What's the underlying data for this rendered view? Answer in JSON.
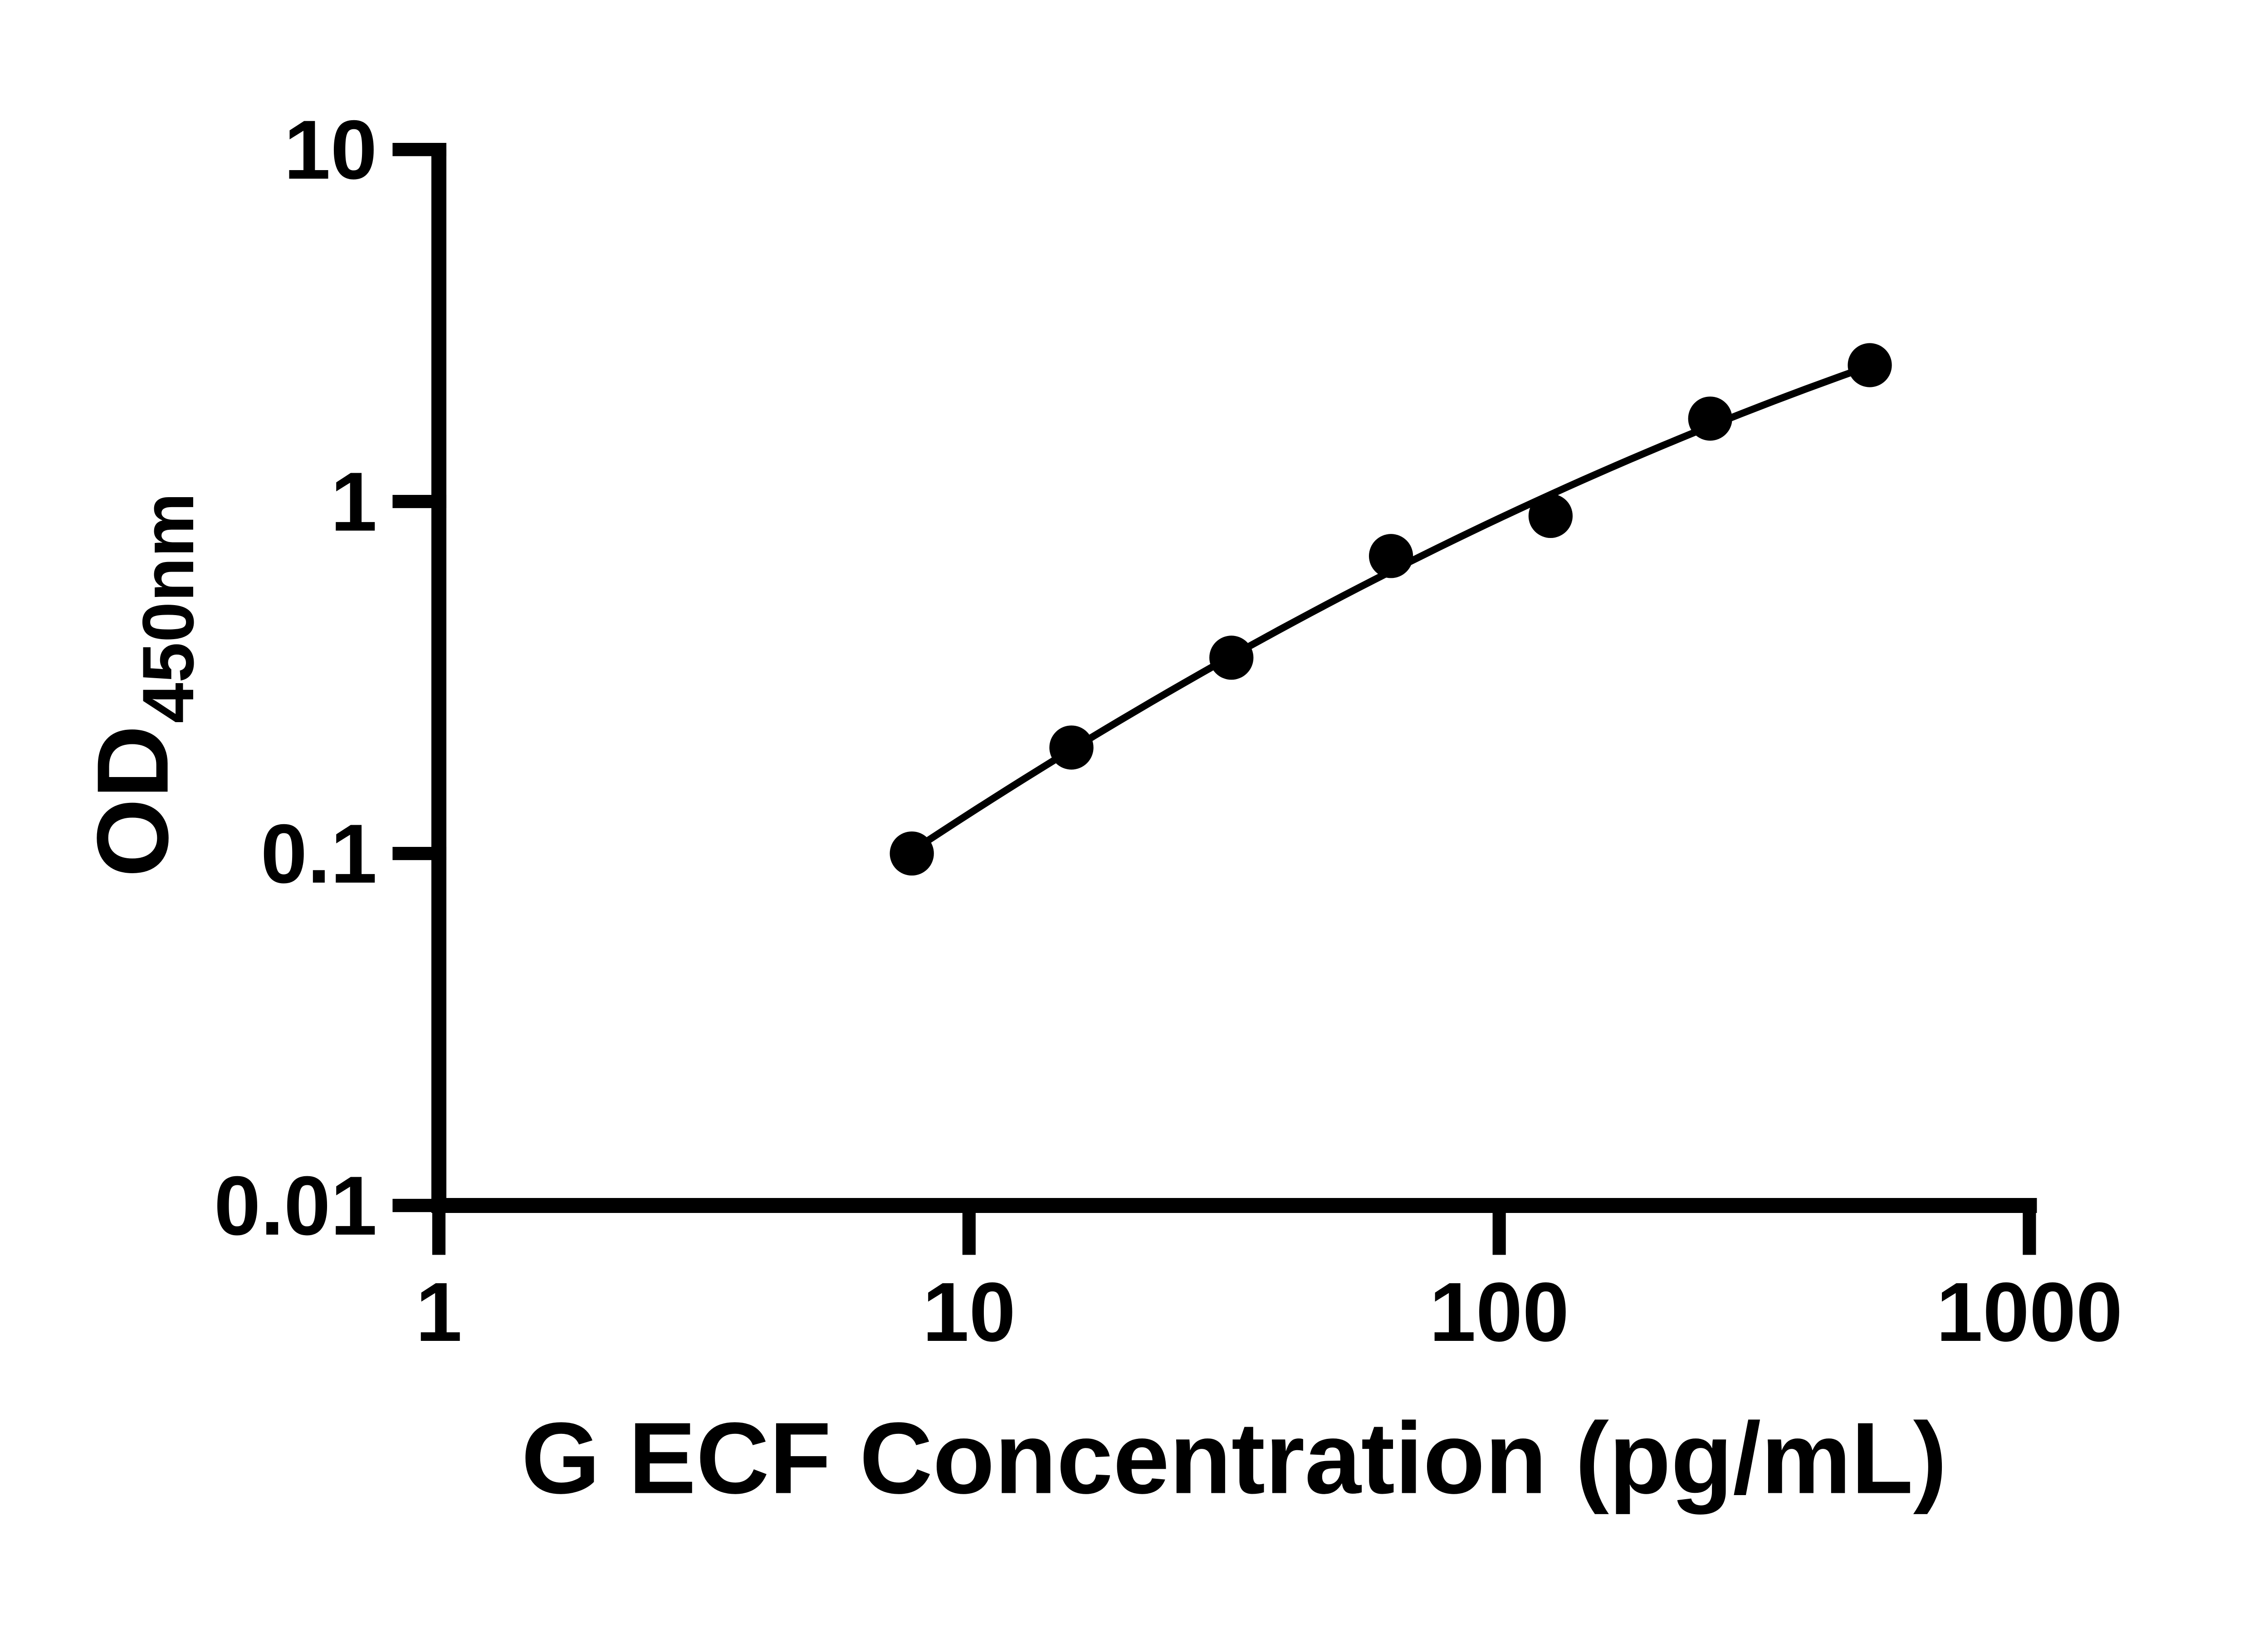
{
  "chart_data": {
    "type": "scatter",
    "title": "",
    "xlabel": "G ECF Concentration (pg/mL)",
    "ylabel_main": "OD",
    "ylabel_sub": "450nm",
    "x_scale": "log10",
    "y_scale": "log10",
    "xlim": [
      1,
      1000
    ],
    "ylim": [
      0.01,
      10
    ],
    "grid": false,
    "legend": false,
    "x_ticks": [
      {
        "value": 1,
        "label": "1"
      },
      {
        "value": 10,
        "label": "10"
      },
      {
        "value": 100,
        "label": "100"
      },
      {
        "value": 1000,
        "label": "1000"
      }
    ],
    "y_ticks": [
      {
        "value": 10,
        "label": "10"
      },
      {
        "value": 1,
        "label": "1"
      },
      {
        "value": 0.1,
        "label": "0.1"
      },
      {
        "value": 0.01,
        "label": "0.01"
      }
    ],
    "series": [
      {
        "name": "standard-curve-points",
        "marker": "filled-circle",
        "color": "#000000",
        "points": [
          {
            "x": 7.8,
            "y": 0.1
          },
          {
            "x": 15.6,
            "y": 0.2
          },
          {
            "x": 31.25,
            "y": 0.36
          },
          {
            "x": 62.5,
            "y": 0.7
          },
          {
            "x": 125,
            "y": 0.91
          },
          {
            "x": 250,
            "y": 1.72
          },
          {
            "x": 500,
            "y": 2.44
          }
        ]
      }
    ],
    "fit_curve": {
      "description": "smooth standard-curve fit in log-log space: log10(y) = a + b*u + c*u^2, with u = log10(x) - u0",
      "a": -0.9934,
      "b": 0.99697,
      "c": -0.12947,
      "u0": 0.892,
      "x_start": 7.8,
      "x_end": 500
    },
    "colors": {
      "foreground": "#000000",
      "background": "#ffffff"
    }
  }
}
